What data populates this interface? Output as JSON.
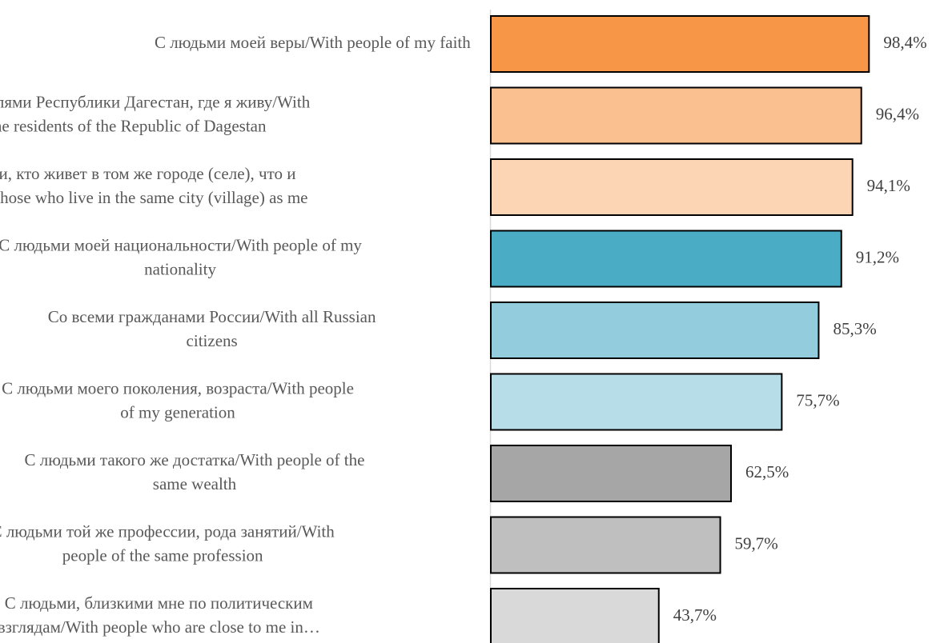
{
  "chart_data": {
    "type": "bar",
    "orientation": "horizontal",
    "categories": [
      [
        "С людьми моей веры/With people of my faith"
      ],
      [
        "С жителями Республики Дагестан, где я живу/With",
        "the residents of the Republic of Dagestan"
      ],
      [
        "С теми, кто живет в том же городе (селе), что и",
        "я/With those who live in the same city (village) as me"
      ],
      [
        "С людьми моей национальности/With people of my",
        "nationality"
      ],
      [
        "Со всеми гражданами России/With all Russian",
        "citizens"
      ],
      [
        "С людьми моего поколения, возраста/With people",
        "of my generation"
      ],
      [
        "С людьми такого же достатка/With people of the",
        "same wealth"
      ],
      [
        "С людьми той же профессии, рода занятий/With",
        "people of the same profession"
      ],
      [
        "С людьми, близкими мне по политическим",
        "взглядам/With people who are close to me in…"
      ]
    ],
    "values": [
      98.4,
      96.4,
      94.1,
      91.2,
      85.3,
      75.7,
      62.5,
      59.7,
      43.7
    ],
    "value_labels": [
      "98,4%",
      "96,4%",
      "94,1%",
      "91,2%",
      "85,3%",
      "75,7%",
      "62,5%",
      "59,7%",
      "43,7%"
    ],
    "colors": [
      "#F79646",
      "#FAC090",
      "#FCD5B5",
      "#4BACC6",
      "#93CDDD",
      "#B7DEE8",
      "#A6A6A6",
      "#BFBFBF",
      "#D9D9D9"
    ],
    "xlim": [
      0,
      100
    ],
    "title": "",
    "xlabel": "",
    "ylabel": "",
    "grid": false,
    "legend": "none"
  }
}
